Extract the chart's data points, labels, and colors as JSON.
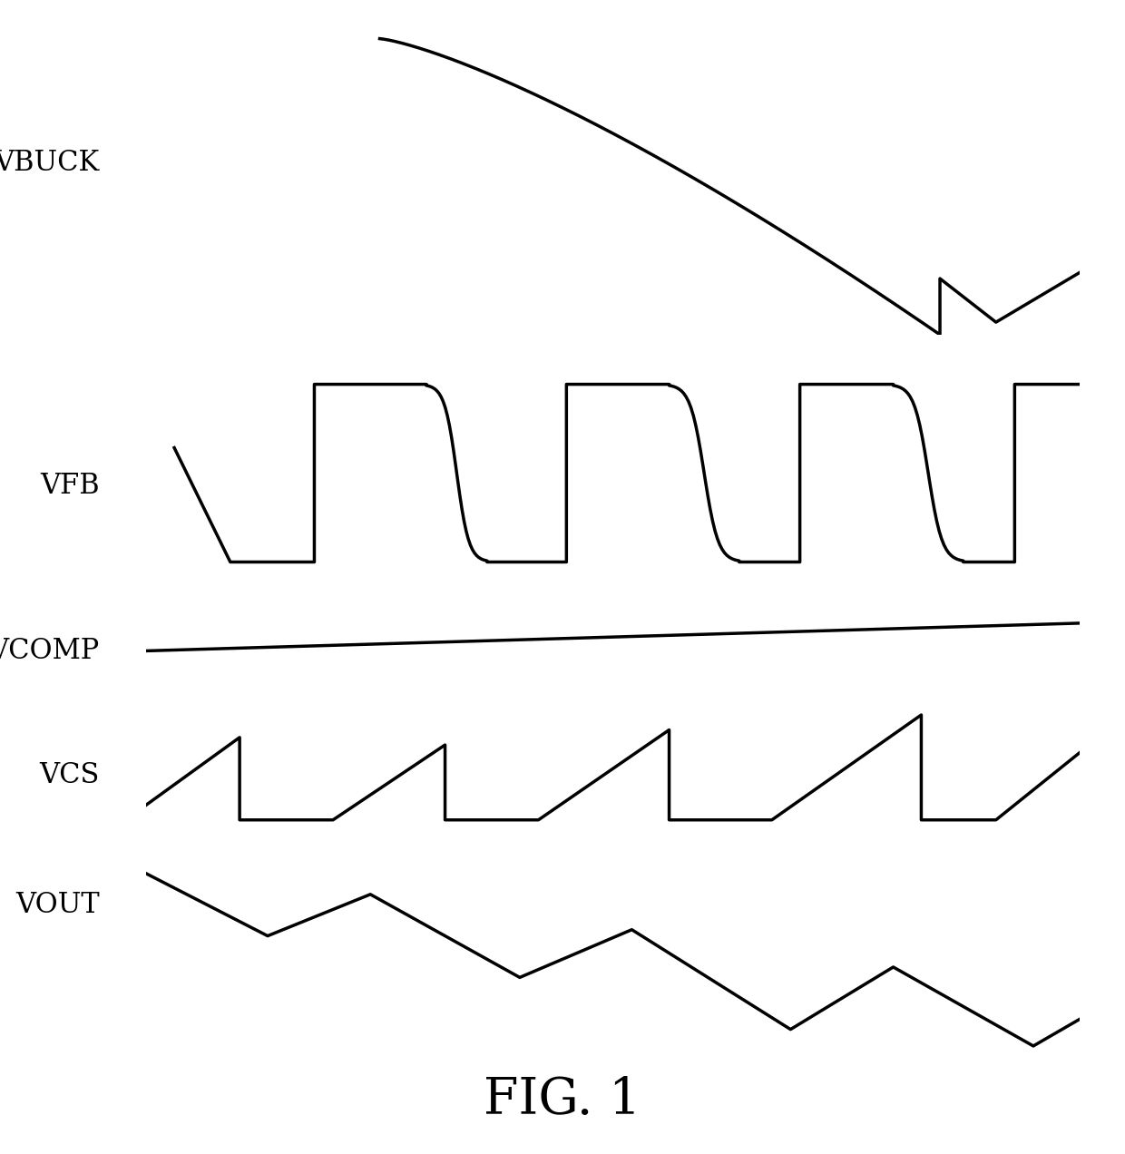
{
  "background_color": "#ffffff",
  "line_color": "#000000",
  "line_width": 2.5,
  "fig_width": 12.4,
  "fig_height": 12.72,
  "title": "FIG. 1",
  "title_fontsize": 40,
  "label_fontsize": 22,
  "signals": [
    "VBUCK",
    "VFB",
    "VCOMP",
    "VCS",
    "VOUT"
  ]
}
